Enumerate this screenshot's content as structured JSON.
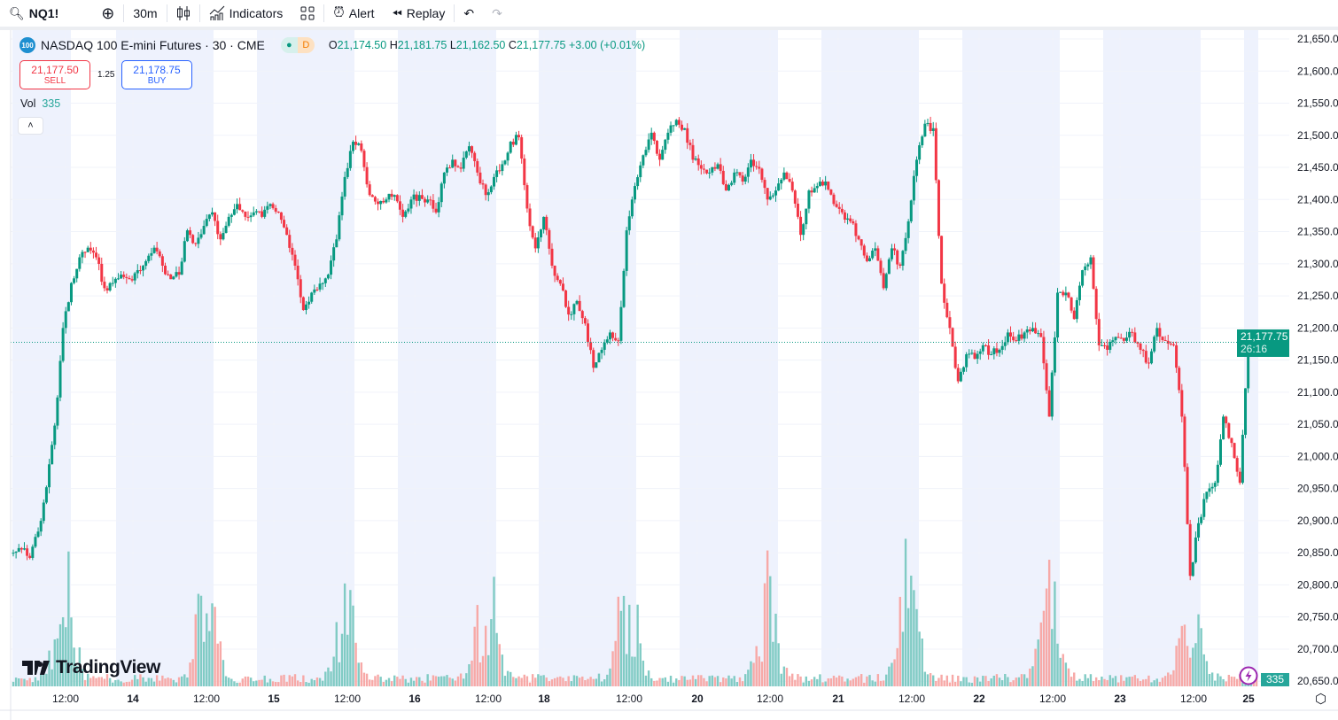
{
  "toolbar": {
    "symbol": "NQ1!",
    "interval": "30m",
    "indicators": "Indicators",
    "alert": "Alert",
    "replay": "Replay"
  },
  "legend": {
    "title": "NASDAQ 100 E-mini Futures · 30 · CME",
    "logo": "100",
    "pill_d": "D",
    "o_label": "O",
    "o": "21,174.50",
    "h_label": "H",
    "h": "21,181.75",
    "l_label": "L",
    "l": "21,162.50",
    "c_label": "C",
    "c": "21,177.75",
    "change": "+3.00 (+0.01%)"
  },
  "trade": {
    "sell_price": "21,177.50",
    "sell_label": "SELL",
    "spread": "1.25",
    "buy_price": "21,178.75",
    "buy_label": "BUY"
  },
  "volume": {
    "label": "Vol",
    "value": "335"
  },
  "price_tag": {
    "price": "21,177.75",
    "countdown": "26:16"
  },
  "brand": "TradingView",
  "colors": {
    "up": "#089981",
    "down": "#f23645",
    "session": "#eef2fd",
    "up_vol": "#80cbc4",
    "down_vol": "#f7a9a7"
  },
  "chart_data": {
    "type": "candlestick",
    "symbol": "NQ1!",
    "y_ticks": [
      "21,650.0",
      "21,600.0",
      "21,550.0",
      "21,500.0",
      "21,450.0",
      "21,400.0",
      "21,350.0",
      "21,300.0",
      "21,250.0",
      "21,200.0",
      "21,150.0",
      "21,100.0",
      "21,050.0",
      "21,000.0",
      "20,950.0",
      "20,900.0",
      "20,850.0",
      "20,800.0",
      "20,750.0",
      "20,700.0",
      "20,650.0"
    ],
    "ylim": [
      20650,
      21650
    ],
    "x_ticks": [
      "12:00",
      "14",
      "12:00",
      "15",
      "12:00",
      "16",
      "12:00",
      "18",
      "12:00",
      "20",
      "12:00",
      "21",
      "12:00",
      "22",
      "12:00",
      "23",
      "12:00",
      "25"
    ],
    "approx_closes": [
      20850,
      20855,
      20842,
      20883,
      20952,
      21048,
      21200,
      21270,
      21310,
      21325,
      21310,
      21262,
      21270,
      21283,
      21276,
      21290,
      21304,
      21325,
      21297,
      21276,
      21283,
      21352,
      21331,
      21359,
      21380,
      21338,
      21373,
      21393,
      21373,
      21380,
      21373,
      21393,
      21380,
      21345,
      21297,
      21228,
      21255,
      21269,
      21283,
      21338,
      21435,
      21490,
      21476,
      21407,
      21393,
      21400,
      21407,
      21373,
      21400,
      21407,
      21400,
      21380,
      21442,
      21462,
      21448,
      21483,
      21442,
      21407,
      21435,
      21455,
      21490,
      21497,
      21386,
      21324,
      21373,
      21297,
      21269,
      21221,
      21242,
      21207,
      21138,
      21166,
      21193,
      21180,
      21352,
      21421,
      21469,
      21504,
      21462,
      21504,
      21524,
      21511,
      21462,
      21448,
      21442,
      21455,
      21414,
      21442,
      21428,
      21462,
      21448,
      21400,
      21414,
      21442,
      21414,
      21345,
      21414,
      21421,
      21428,
      21393,
      21380,
      21366,
      21338,
      21304,
      21324,
      21262,
      21324,
      21297,
      21366,
      21462,
      21518,
      21511,
      21269,
      21200,
      21117,
      21159,
      21152,
      21173,
      21159,
      21166,
      21193,
      21180,
      21193,
      21200,
      21186,
      21062,
      21255,
      21255,
      21214,
      21290,
      21310,
      21173,
      21166,
      21186,
      21180,
      21193,
      21166,
      21145,
      21200,
      21180,
      21173,
      21062,
      20814,
      20896,
      20945,
      20959,
      21062,
      21021,
      20959,
      21186,
      21177.75
    ],
    "last_price": 21177.75
  }
}
